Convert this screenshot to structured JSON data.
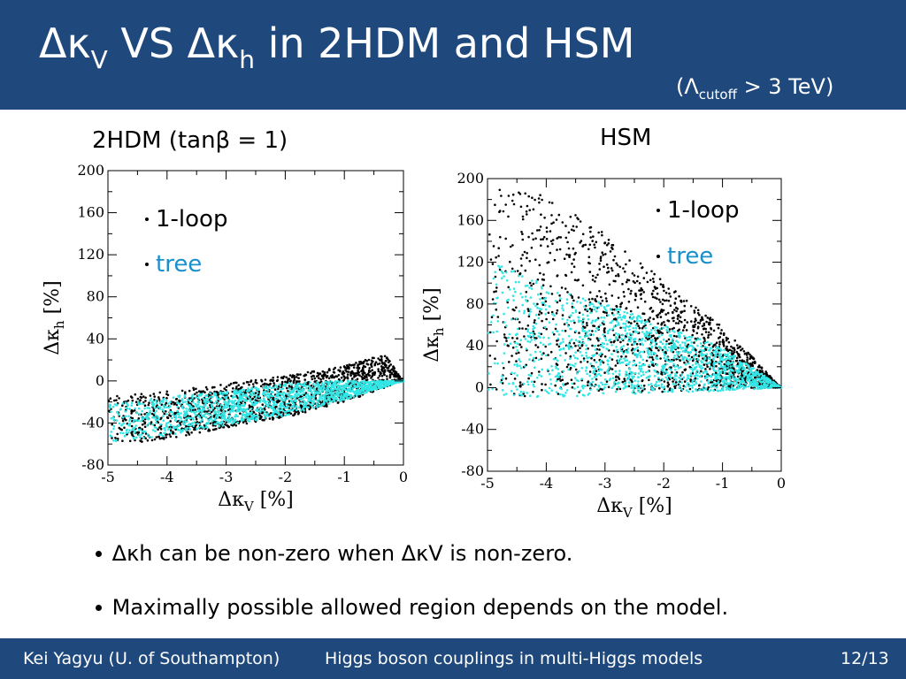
{
  "header": {
    "title_prefix": "Δκ",
    "title_sub1": "V",
    "title_mid": " VS Δκ",
    "title_sub2": "h",
    "title_suffix": " in 2HDM and HSM",
    "cutoff_prefix": "(Λ",
    "cutoff_sub": "cutoff",
    "cutoff_suffix": " > 3 TeV)"
  },
  "panels": {
    "left_label": "2HDM (tanβ = 1)",
    "right_label": "HSM"
  },
  "colors": {
    "header": "#1f497d",
    "loop": "#000000",
    "tree": "#33e6e6",
    "tree_legend": "#1a8fcc"
  },
  "chart_data": [
    {
      "type": "scatter",
      "panel": "2HDM (tanβ = 1)",
      "xlabel": "Δκ",
      "xlabel_sub": "V",
      "xlabel_unit": " [%]",
      "ylabel": "Δκ",
      "ylabel_sub": "h",
      "ylabel_unit": " [%]",
      "xlim": [
        -5,
        0
      ],
      "ylim": [
        -80,
        200
      ],
      "xticks": [
        "-5",
        "-4",
        "-3",
        "-2",
        "-1",
        "0"
      ],
      "yticks": [
        "-80",
        "-40",
        "0",
        "40",
        "80",
        "120",
        "160",
        "200"
      ],
      "legend_placement": "top-left",
      "grid": false,
      "series": [
        {
          "name": "1-loop",
          "color": "#000000",
          "region": {
            "upper": [
              [
                -5,
                -15
              ],
              [
                -4,
                -10
              ],
              [
                -3,
                -2
              ],
              [
                -2,
                5
              ],
              [
                -1,
                14
              ],
              [
                -0.6,
                22
              ],
              [
                -0.3,
                24
              ],
              [
                0,
                0
              ]
            ],
            "lower": [
              [
                -5,
                -62
              ],
              [
                -4,
                -55
              ],
              [
                -3,
                -45
              ],
              [
                -2,
                -35
              ],
              [
                -1,
                -20
              ],
              [
                -0.5,
                -10
              ],
              [
                0,
                0
              ]
            ]
          }
        },
        {
          "name": "tree",
          "color": "#33e6e6",
          "region": {
            "upper": [
              [
                -5,
                -22
              ],
              [
                -4,
                -15
              ],
              [
                -3,
                -10
              ],
              [
                -2,
                -2
              ],
              [
                -1,
                0
              ],
              [
                -0.5,
                0
              ],
              [
                0,
                0
              ]
            ],
            "lower": [
              [
                -5,
                -58
              ],
              [
                -4,
                -52
              ],
              [
                -3,
                -42
              ],
              [
                -2,
                -33
              ],
              [
                -1,
                -18
              ],
              [
                -0.5,
                -9
              ],
              [
                0,
                0
              ]
            ]
          }
        }
      ]
    },
    {
      "type": "scatter",
      "panel": "HSM",
      "xlabel": "Δκ",
      "xlabel_sub": "V",
      "xlabel_unit": " [%]",
      "ylabel": "Δκ",
      "ylabel_sub": "h",
      "ylabel_unit": " [%]",
      "xlim": [
        -5,
        0
      ],
      "ylim": [
        -80,
        200
      ],
      "xticks": [
        "-5",
        "-4",
        "-3",
        "-2",
        "-1",
        "0"
      ],
      "yticks": [
        "-80",
        "-40",
        "0",
        "40",
        "80",
        "120",
        "160",
        "200"
      ],
      "legend_placement": "top-right",
      "grid": false,
      "series": [
        {
          "name": "1-loop",
          "color": "#000000",
          "region": {
            "upper": [
              [
                -5,
                193
              ],
              [
                -4.5,
                195
              ],
              [
                -4,
                183
              ],
              [
                -3,
                148
              ],
              [
                -2,
                102
              ],
              [
                -1,
                58
              ],
              [
                -0.5,
                30
              ],
              [
                0,
                0
              ]
            ],
            "lower": [
              [
                -5,
                -10
              ],
              [
                -4,
                -8
              ],
              [
                -3,
                -6
              ],
              [
                -2,
                -4
              ],
              [
                -1,
                -2
              ],
              [
                0,
                0
              ]
            ]
          }
        },
        {
          "name": "tree",
          "color": "#33e6e6",
          "region": {
            "upper": [
              [
                -5,
                122
              ],
              [
                -4,
                100
              ],
              [
                -3,
                80
              ],
              [
                -2,
                60
              ],
              [
                -1,
                38
              ],
              [
                -0.5,
                20
              ],
              [
                0,
                0
              ]
            ],
            "lower": [
              [
                -5,
                -12
              ],
              [
                -4,
                -10
              ],
              [
                -3,
                -7
              ],
              [
                -2,
                -5
              ],
              [
                -1,
                -3
              ],
              [
                0,
                0
              ]
            ]
          }
        }
      ]
    }
  ],
  "bullets": [
    "∙ Δκh can be non-zero when ΔκV is non-zero.",
    "∙ Maximally possible allowed region depends on the model."
  ],
  "footer": {
    "author": "Kei Yagyu (U. of Southampton)",
    "talk": "Higgs boson couplings in multi-Higgs models",
    "page": "12/13"
  }
}
